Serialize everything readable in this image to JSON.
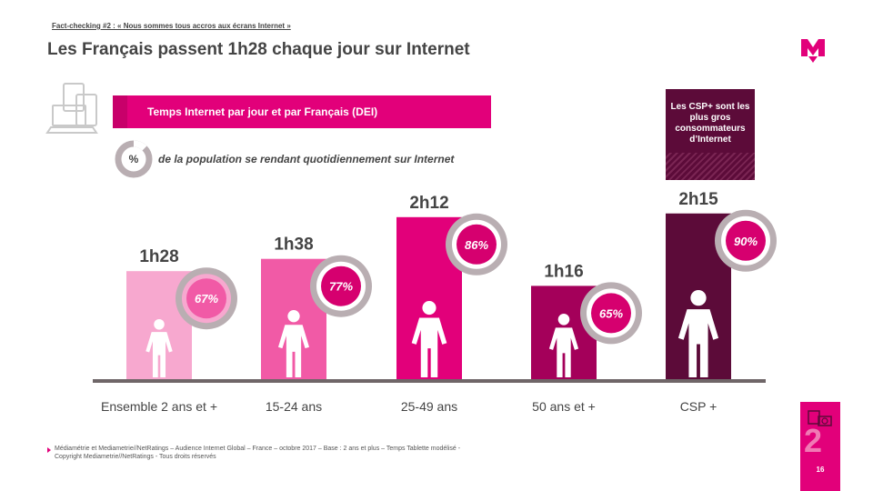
{
  "header": {
    "kicker": "Fact-checking #2 : « Nous sommes tous accros aux écrans Internet »",
    "title": "Les Français passent  1h28 chaque jour sur Internet",
    "logo_icon": "m-brand-logo-icon"
  },
  "banner": {
    "label": "Temps Internet par jour et par Français (DEI)"
  },
  "legend": {
    "symbol": "%",
    "text": "de la population se rendant quotidiennement  sur Internet"
  },
  "callout": {
    "text": "Les CSP+ sont les plus gros consommateurs d’Internet"
  },
  "chart_data": {
    "type": "bar",
    "categories": [
      "Ensemble 2 ans et +",
      "15-24 ans",
      "25-49 ans",
      "50 ans et +",
      "CSP +"
    ],
    "values": [
      88,
      98,
      132,
      76,
      135
    ],
    "value_labels": [
      "1h28",
      "1h38",
      "2h12",
      "1h16",
      "2h15"
    ],
    "daily_reach_pct": [
      67,
      77,
      86,
      65,
      90
    ],
    "daily_reach_labels": [
      "67%",
      "77%",
      "86%",
      "65%",
      "90%"
    ],
    "unit": "minutes",
    "colors": [
      "#f7a8cf",
      "#f15aa6",
      "#e2007a",
      "#a4005a",
      "#5c0b39"
    ],
    "ring_colors": [
      "#f15aa6",
      "#d6006f",
      "#d6006f",
      "#d6006f",
      "#d6006f"
    ],
    "ylim": [
      0,
      150
    ],
    "icons": [
      "person-child-icon",
      "person-cap-icon",
      "person-glasses-icon",
      "person-cane-icon",
      "person-tie-icon"
    ]
  },
  "source": {
    "line1": "Médiamétrie et Mediametrie//NetRatings – Audience Internet Global – France – octobre 2017 – Base : 2 ans et plus – Temps Tablette modélisé -",
    "line2": "Copyright Mediametrie//NetRatings - Tous droits réservés"
  },
  "page": {
    "number": "16",
    "section": "2"
  }
}
